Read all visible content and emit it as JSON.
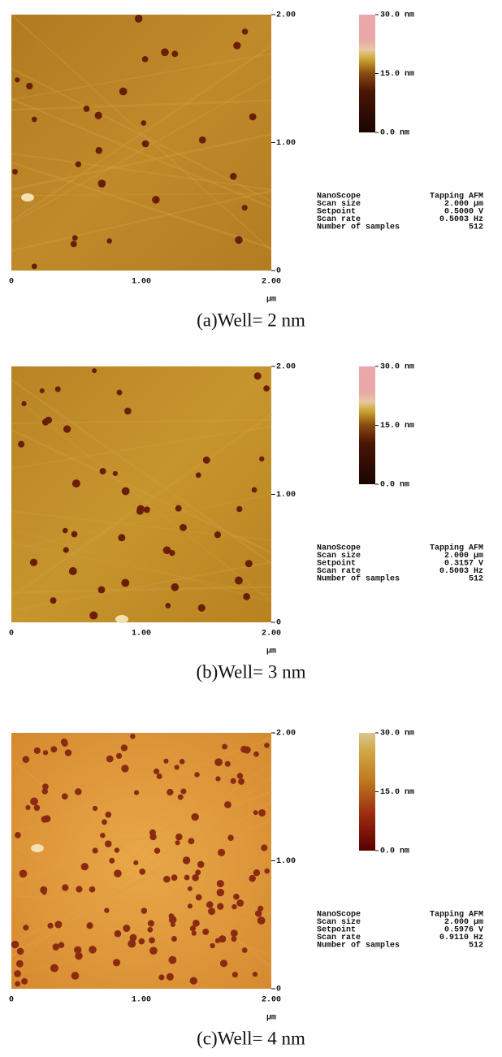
{
  "panels": [
    {
      "x_ticks": [
        "0",
        "1.00",
        "2.00"
      ],
      "x_unit": "μm",
      "y_ticks": [
        "2.00",
        "1.00",
        "0"
      ],
      "colorbar": [
        "30.0 nm",
        "15.0 nm",
        "0.0 nm"
      ],
      "params": [
        [
          "NanoScope",
          "Tapping AFM"
        ],
        [
          "Scan size",
          "2.000 μm"
        ],
        [
          "Setpoint",
          "0.5000 V"
        ],
        [
          "Scan rate",
          "0.5003 Hz"
        ],
        [
          "Number of samples",
          "512"
        ]
      ],
      "caption": "(a)Well= 2 nm"
    },
    {
      "x_ticks": [
        "0",
        "1.00",
        "2.00"
      ],
      "x_unit": "μm",
      "y_ticks": [
        "2.00",
        "1.00",
        "0"
      ],
      "colorbar": [
        "30.0 nm",
        "15.0 nm",
        "0.0 nm"
      ],
      "params": [
        [
          "NanoScope",
          "Tapping AFM"
        ],
        [
          "Scan size",
          "2.000 μm"
        ],
        [
          "Setpoint",
          "0.3157 V"
        ],
        [
          "Scan rate",
          "0.5003 Hz"
        ],
        [
          "Number of samples",
          "512"
        ]
      ],
      "caption": "(b)Well= 3 nm"
    },
    {
      "x_ticks": [
        "0",
        "1.00",
        "2.00"
      ],
      "x_unit": "μm",
      "y_ticks": [
        "2.00",
        "1.00",
        "0"
      ],
      "colorbar": [
        "30.0 nm",
        "15.0 nm",
        "0.0 nm"
      ],
      "params": [
        [
          "NanoScope",
          "Tapping AFM"
        ],
        [
          "Scan size",
          "2.000 μm"
        ],
        [
          "Setpoint",
          "0.5976 V"
        ],
        [
          "Scan rate",
          "0.9110 Hz"
        ],
        [
          "Number of samples",
          "512"
        ]
      ],
      "caption": "(c)Well= 4 nm"
    }
  ]
}
